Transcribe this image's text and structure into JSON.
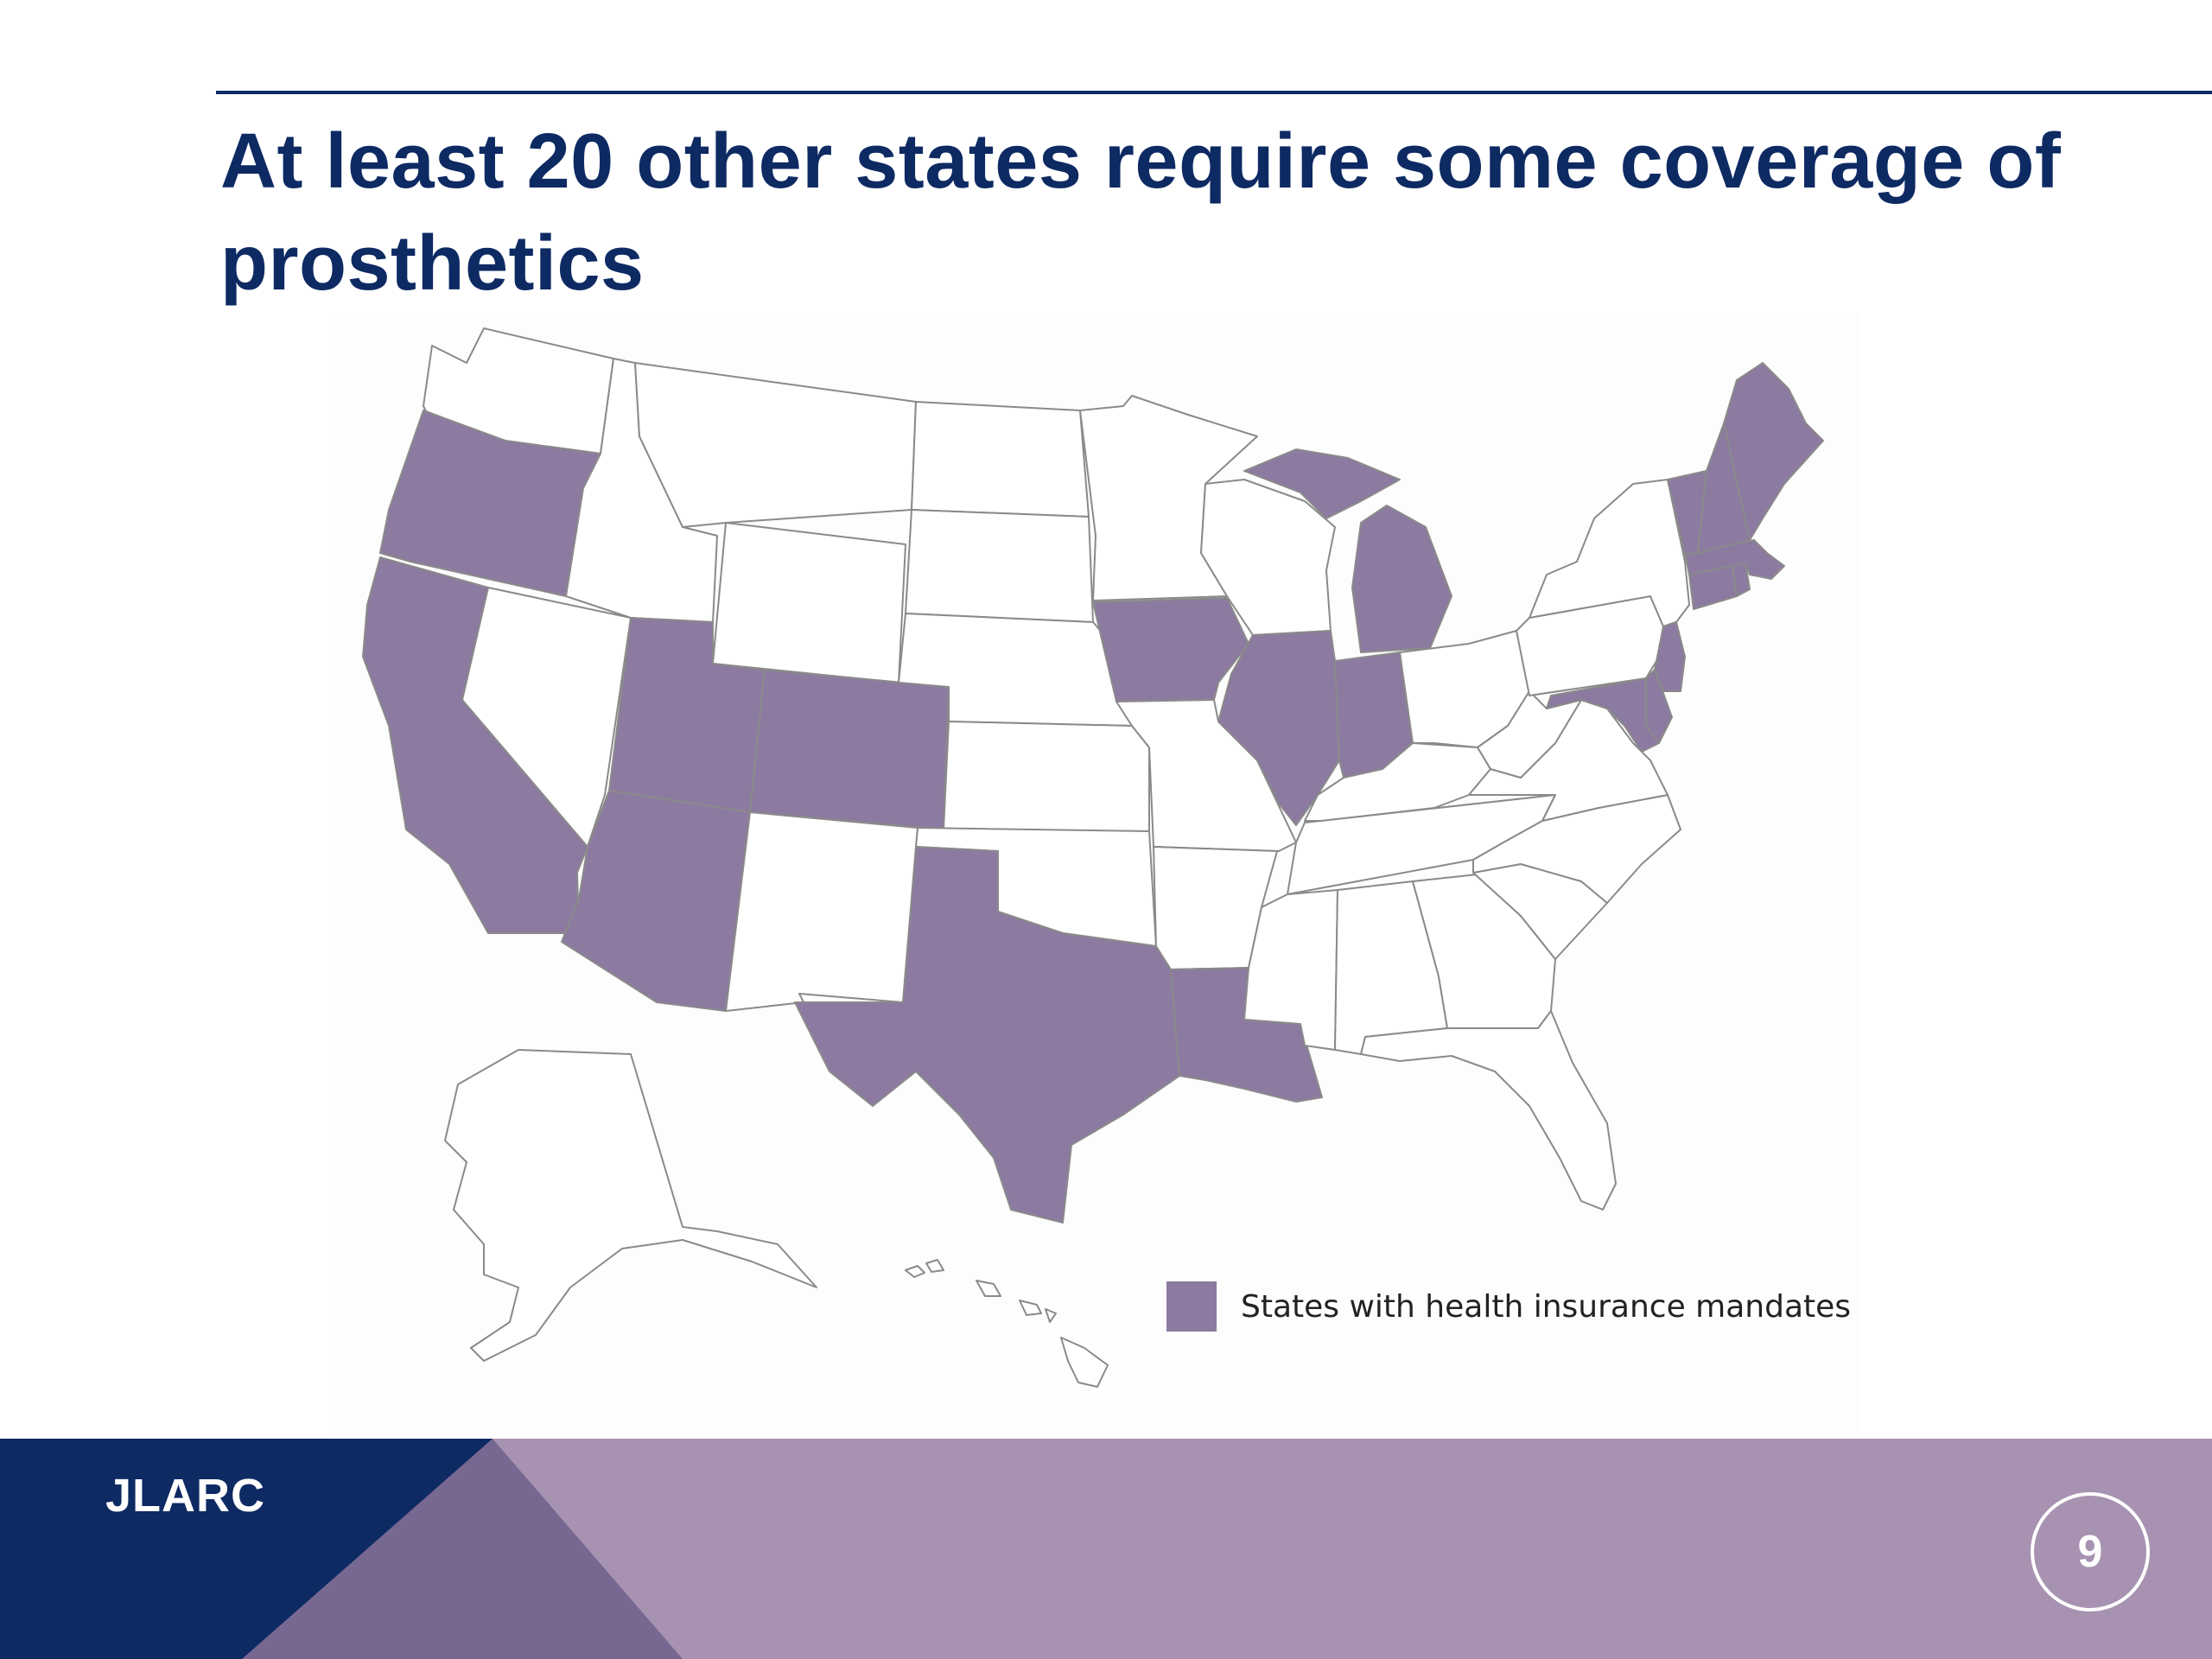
{
  "slide": {
    "title": "At least 20 other states require some coverage of prosthetics",
    "page_number": "9"
  },
  "footer": {
    "brand": "JLARC",
    "colors": {
      "navy": "#0e2a63",
      "purple_dark": "#776892",
      "purple_light": "#a793b1"
    }
  },
  "map": {
    "highlight_color": "#8d7aa1",
    "base_color": "#ffffff",
    "legend": {
      "label": "States with health insurance mandates"
    },
    "mandate_states": [
      "OR",
      "CA",
      "AZ",
      "UT",
      "CO",
      "TX",
      "LA",
      "IA",
      "IL",
      "IN",
      "MI",
      "VT",
      "NH",
      "ME",
      "MA",
      "CT",
      "RI",
      "NJ",
      "MD",
      "DE"
    ],
    "other_states": [
      "WA",
      "ID",
      "MT",
      "WY",
      "NV",
      "NM",
      "ND",
      "SD",
      "NE",
      "KS",
      "OK",
      "MN",
      "WI",
      "MO",
      "AR",
      "MS",
      "AL",
      "GA",
      "FL",
      "SC",
      "NC",
      "TN",
      "KY",
      "OH",
      "WV",
      "VA",
      "PA",
      "NY",
      "AK",
      "HI"
    ]
  }
}
